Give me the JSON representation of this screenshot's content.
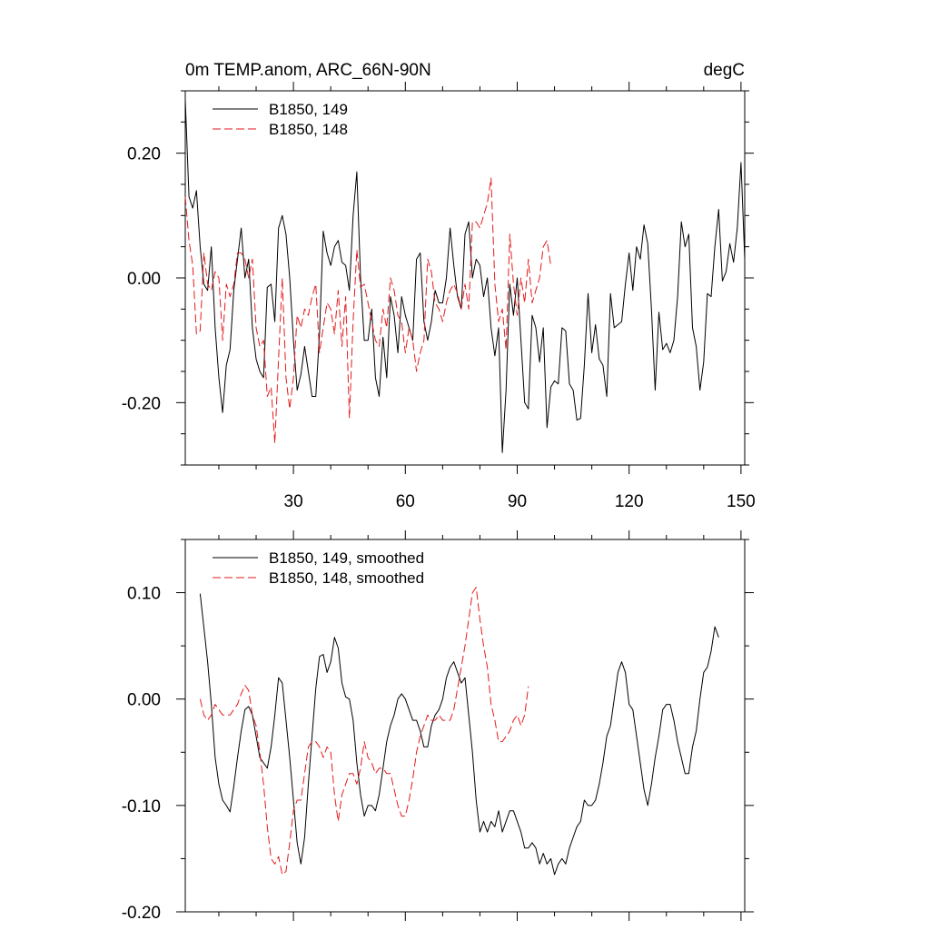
{
  "chart_data": [
    {
      "type": "line",
      "title": "0m TEMP.anom, ARC_66N-90N",
      "units": "degC",
      "xlim": [
        1,
        151
      ],
      "ylim": [
        -0.3,
        0.3
      ],
      "x_ticks": [
        30,
        60,
        90,
        120,
        150
      ],
      "x_tick_labels": [
        "30",
        "60",
        "90",
        "120",
        "150"
      ],
      "y_ticks": [
        0.2,
        0.0,
        -0.2
      ],
      "y_tick_labels": [
        "0.20",
        "0.00",
        "-0.20"
      ],
      "series": [
        {
          "name": "B1850, 149",
          "color": "#000000",
          "dash": "solid",
          "x_start": 1,
          "values": [
            0.286,
            0.13,
            0.112,
            0.14,
            0.05,
            -0.01,
            -0.02,
            0.05,
            -0.08,
            -0.16,
            -0.216,
            -0.14,
            -0.115,
            -0.02,
            0.03,
            0.08,
            0.0,
            0.03,
            -0.08,
            -0.13,
            -0.15,
            -0.16,
            -0.015,
            -0.01,
            -0.07,
            0.08,
            0.1,
            0.07,
            0.0,
            -0.1,
            -0.18,
            -0.155,
            -0.11,
            -0.15,
            -0.19,
            -0.19,
            -0.09,
            0.075,
            0.04,
            0.02,
            0.05,
            0.06,
            0.025,
            0.02,
            -0.02,
            0.1,
            0.17,
            0.0,
            -0.1,
            -0.1,
            -0.05,
            -0.16,
            -0.19,
            -0.095,
            -0.16,
            -0.03,
            -0.06,
            -0.12,
            -0.03,
            -0.06,
            -0.08,
            -0.1,
            0.03,
            0.04,
            -0.07,
            -0.1,
            -0.07,
            -0.02,
            -0.04,
            -0.04,
            0.0,
            0.08,
            0.02,
            -0.03,
            -0.05,
            0.07,
            0.09,
            0.0,
            0.03,
            0.02,
            -0.03,
            0.0,
            -0.08,
            -0.125,
            -0.08,
            -0.28,
            -0.18,
            -0.01,
            -0.06,
            0.0,
            -0.1,
            -0.2,
            -0.21,
            -0.06,
            -0.08,
            -0.135,
            -0.08,
            -0.24,
            -0.175,
            -0.165,
            -0.17,
            -0.08,
            -0.085,
            -0.17,
            -0.18,
            -0.228,
            -0.225,
            -0.14,
            -0.025,
            -0.12,
            -0.075,
            -0.13,
            -0.14,
            -0.19,
            -0.025,
            -0.08,
            -0.075,
            -0.07,
            -0.01,
            0.04,
            -0.02,
            0.05,
            0.03,
            0.085,
            0.055,
            -0.05,
            -0.18,
            -0.055,
            -0.115,
            -0.105,
            -0.12,
            -0.1,
            -0.03,
            0.09,
            0.05,
            0.07,
            -0.08,
            -0.11,
            -0.18,
            -0.135,
            -0.025,
            -0.03,
            0.05,
            0.11,
            -0.005,
            0.01,
            0.055,
            0.025,
            0.08,
            0.185,
            0.03
          ]
        },
        {
          "name": "B1850, 148",
          "color": "#e31a1c",
          "dash": "dashed",
          "x_start": 1,
          "values": [
            0.13,
            0.06,
            0.02,
            -0.09,
            -0.085,
            0.04,
            -0.01,
            -0.02,
            0.01,
            0.0,
            -0.1,
            -0.01,
            -0.03,
            -0.01,
            0.04,
            0.04,
            0.03,
            0.0,
            0.03,
            -0.08,
            -0.11,
            -0.1,
            -0.19,
            -0.175,
            -0.265,
            -0.13,
            0.0,
            -0.16,
            -0.21,
            -0.16,
            -0.06,
            -0.08,
            -0.05,
            -0.06,
            -0.03,
            -0.01,
            -0.12,
            -0.08,
            -0.04,
            -0.05,
            -0.09,
            -0.02,
            -0.11,
            -0.03,
            -0.225,
            -0.07,
            0.045,
            -0.015,
            -0.01,
            -0.04,
            -0.07,
            -0.1,
            -0.11,
            -0.05,
            -0.08,
            0.0,
            -0.02,
            -0.06,
            -0.07,
            -0.12,
            -0.08,
            -0.1,
            -0.15,
            -0.12,
            -0.1,
            0.03,
            0.01,
            -0.04,
            -0.05,
            -0.07,
            -0.04,
            -0.02,
            -0.01,
            -0.025,
            -0.05,
            -0.01,
            -0.05,
            0.09,
            0.09,
            0.08,
            0.1,
            0.12,
            0.16,
            -0.01,
            -0.07,
            -0.05,
            -0.115,
            0.07,
            -0.01,
            -0.06,
            0.0,
            -0.04,
            0.03,
            -0.04,
            -0.02,
            0.0,
            0.05,
            0.06,
            0.02
          ]
        }
      ]
    },
    {
      "type": "line",
      "xlim": [
        1,
        151
      ],
      "ylim": [
        -0.2,
        0.15
      ],
      "x_ticks": [
        30,
        60,
        90,
        120,
        150
      ],
      "y_ticks": [
        0.1,
        0.0,
        -0.1,
        -0.2
      ],
      "y_tick_labels": [
        "0.10",
        "0.00",
        "-0.10",
        "-0.20"
      ],
      "series": [
        {
          "name": "B1850, 149, smoothed",
          "color": "#000000",
          "dash": "solid",
          "x_start": 5,
          "values": [
            0.099,
            0.067,
            0.035,
            -0.005,
            -0.055,
            -0.08,
            -0.095,
            -0.1,
            -0.106,
            -0.082,
            -0.055,
            -0.03,
            -0.01,
            -0.007,
            -0.015,
            -0.035,
            -0.055,
            -0.06,
            -0.065,
            -0.045,
            -0.015,
            0.02,
            0.015,
            -0.02,
            -0.055,
            -0.095,
            -0.135,
            -0.155,
            -0.13,
            -0.08,
            -0.035,
            0.01,
            0.04,
            0.042,
            0.025,
            0.035,
            0.058,
            0.048,
            0.015,
            0.002,
            0.0,
            -0.02,
            -0.06,
            -0.09,
            -0.11,
            -0.1,
            -0.1,
            -0.105,
            -0.09,
            -0.065,
            -0.04,
            -0.025,
            -0.015,
            0.0,
            0.005,
            0.0,
            -0.01,
            -0.02,
            -0.02,
            -0.03,
            -0.045,
            -0.045,
            -0.025,
            -0.015,
            -0.01,
            0.0,
            0.02,
            0.03,
            0.035,
            0.025,
            0.015,
            0.02,
            -0.015,
            -0.05,
            -0.095,
            -0.125,
            -0.115,
            -0.125,
            -0.115,
            -0.12,
            -0.105,
            -0.125,
            -0.115,
            -0.105,
            -0.105,
            -0.115,
            -0.125,
            -0.14,
            -0.14,
            -0.135,
            -0.14,
            -0.155,
            -0.145,
            -0.155,
            -0.15,
            -0.165,
            -0.155,
            -0.15,
            -0.155,
            -0.14,
            -0.13,
            -0.12,
            -0.115,
            -0.095,
            -0.1,
            -0.1,
            -0.095,
            -0.08,
            -0.06,
            -0.035,
            -0.025,
            0.0,
            0.025,
            0.035,
            0.025,
            -0.005,
            -0.01,
            -0.035,
            -0.06,
            -0.085,
            -0.1,
            -0.08,
            -0.055,
            -0.035,
            -0.01,
            -0.005,
            -0.005,
            -0.02,
            -0.04,
            -0.055,
            -0.07,
            -0.07,
            -0.045,
            -0.03,
            0.0,
            0.025,
            0.03,
            0.045,
            0.068,
            0.058
          ]
        },
        {
          "name": "B1850, 148, smoothed",
          "color": "#e31a1c",
          "dash": "dashed",
          "x_start": 5,
          "values": [
            0.0,
            -0.015,
            -0.02,
            -0.015,
            -0.005,
            -0.01,
            -0.015,
            -0.015,
            -0.015,
            -0.01,
            -0.005,
            0.005,
            0.013,
            0.008,
            -0.015,
            -0.025,
            -0.05,
            -0.08,
            -0.12,
            -0.15,
            -0.155,
            -0.148,
            -0.165,
            -0.162,
            -0.135,
            -0.105,
            -0.095,
            -0.095,
            -0.07,
            -0.045,
            -0.04,
            -0.04,
            -0.045,
            -0.055,
            -0.045,
            -0.05,
            -0.09,
            -0.115,
            -0.09,
            -0.08,
            -0.07,
            -0.07,
            -0.08,
            -0.065,
            -0.04,
            -0.055,
            -0.06,
            -0.07,
            -0.065,
            -0.065,
            -0.07,
            -0.07,
            -0.085,
            -0.1,
            -0.11,
            -0.11,
            -0.095,
            -0.075,
            -0.05,
            -0.035,
            -0.025,
            -0.015,
            -0.02,
            -0.02,
            -0.015,
            -0.02,
            -0.02,
            -0.02,
            -0.01,
            0.01,
            0.03,
            0.05,
            0.075,
            0.1,
            0.105,
            0.075,
            0.05,
            0.03,
            -0.005,
            -0.02,
            -0.04,
            -0.04,
            -0.035,
            -0.03,
            -0.02,
            -0.015,
            -0.025,
            -0.015,
            0.012
          ]
        }
      ]
    }
  ]
}
